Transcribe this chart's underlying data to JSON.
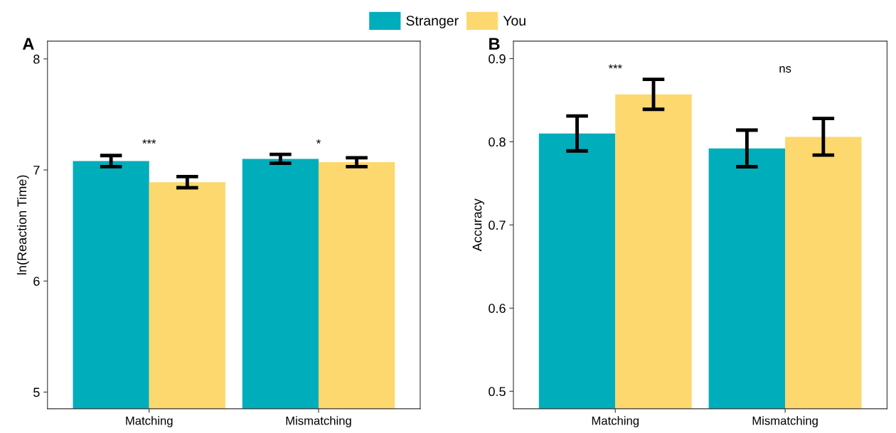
{
  "chart_data": [
    {
      "type": "bar",
      "categories": [
        "Matching",
        "Mismatching"
      ],
      "ylabel": "ln(Reaction Time)",
      "ylim": [
        4.85,
        8.16
      ],
      "yticks": [
        5,
        6,
        7,
        8
      ],
      "legend": "top",
      "grid": false,
      "series": [
        {
          "name": "Stranger",
          "color": "#00adbb",
          "values": [
            7.08,
            7.1
          ],
          "errors": [
            0.05,
            0.04
          ]
        },
        {
          "name": "You",
          "color": "#fdd86e",
          "values": [
            6.89,
            7.07
          ],
          "errors": [
            0.05,
            0.04
          ]
        }
      ],
      "annotations": [
        "A",
        "***",
        "*"
      ]
    },
    {
      "type": "bar",
      "categories": [
        "Matching",
        "Mismatching"
      ],
      "ylabel": "Accuracy",
      "ylim": [
        0.479,
        0.921
      ],
      "yticks": [
        0.5,
        0.6,
        0.7,
        0.8,
        0.9
      ],
      "grid": false,
      "series": [
        {
          "color": "#00adbb",
          "values": [
            0.81,
            0.792
          ],
          "errors": [
            0.021,
            0.022
          ]
        },
        {
          "color": "#fdd86e",
          "values": [
            0.857,
            0.806
          ],
          "errors": [
            0.018,
            0.022
          ]
        }
      ],
      "annotations": [
        "B",
        "***",
        "ns"
      ]
    }
  ]
}
